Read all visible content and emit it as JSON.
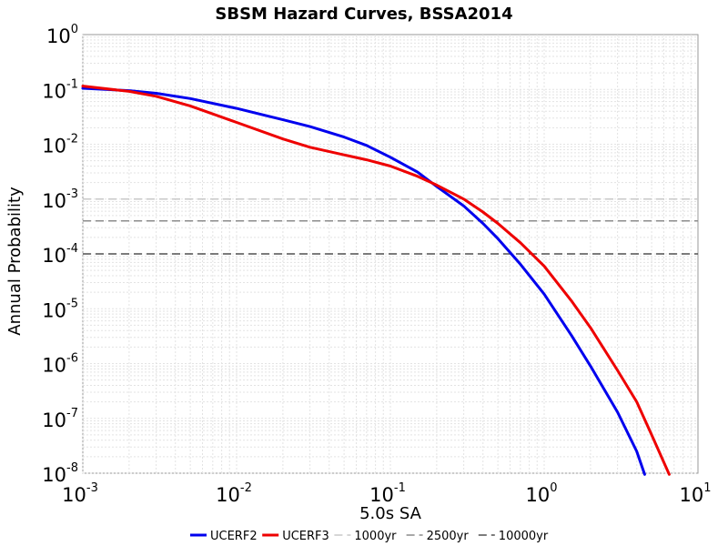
{
  "chart_data": {
    "type": "line",
    "title": "SBSM Hazard Curves, BSSA2014",
    "xlabel": "5.0s SA",
    "ylabel": "Annual Probability",
    "x_scale": "log",
    "y_scale": "log",
    "xlim": [
      0.001,
      10
    ],
    "ylim": [
      1e-08,
      1
    ],
    "grid": true,
    "legend_position": "bottom",
    "x_ticks": [
      {
        "base": "10",
        "exp": "-3",
        "value": 0.001
      },
      {
        "base": "10",
        "exp": "-2",
        "value": 0.01
      },
      {
        "base": "10",
        "exp": "-1",
        "value": 0.1
      },
      {
        "base": "10",
        "exp": "0",
        "value": 1
      },
      {
        "base": "10",
        "exp": "1",
        "value": 10
      }
    ],
    "y_ticks": [
      {
        "base": "10",
        "exp": "0",
        "value": 1
      },
      {
        "base": "10",
        "exp": "-1",
        "value": 0.1
      },
      {
        "base": "10",
        "exp": "-2",
        "value": 0.01
      },
      {
        "base": "10",
        "exp": "-3",
        "value": 0.001
      },
      {
        "base": "10",
        "exp": "-4",
        "value": 0.0001
      },
      {
        "base": "10",
        "exp": "-5",
        "value": 1e-05
      },
      {
        "base": "10",
        "exp": "-6",
        "value": 1e-06
      },
      {
        "base": "10",
        "exp": "-7",
        "value": 1e-07
      },
      {
        "base": "10",
        "exp": "-8",
        "value": 1e-08
      }
    ],
    "series": [
      {
        "name": "UCERF2",
        "color": "#0000ee",
        "points": [
          [
            0.001,
            0.105
          ],
          [
            0.002,
            0.095
          ],
          [
            0.003,
            0.085
          ],
          [
            0.005,
            0.068
          ],
          [
            0.01,
            0.045
          ],
          [
            0.02,
            0.028
          ],
          [
            0.03,
            0.021
          ],
          [
            0.05,
            0.0135
          ],
          [
            0.07,
            0.0095
          ],
          [
            0.1,
            0.0058
          ],
          [
            0.15,
            0.0031
          ],
          [
            0.2,
            0.0017
          ],
          [
            0.3,
            0.00075
          ],
          [
            0.4,
            0.00036
          ],
          [
            0.5,
            0.00019
          ],
          [
            0.7,
            6.5e-05
          ],
          [
            1.0,
            1.85e-05
          ],
          [
            1.5,
            3.3e-06
          ],
          [
            2.0,
            9e-07
          ],
          [
            3.0,
            1.3e-07
          ],
          [
            4.0,
            2.5e-08
          ],
          [
            4.5,
            9.5e-09
          ]
        ]
      },
      {
        "name": "UCERF3",
        "color": "#ee0000",
        "points": [
          [
            0.001,
            0.115
          ],
          [
            0.002,
            0.092
          ],
          [
            0.003,
            0.075
          ],
          [
            0.005,
            0.05
          ],
          [
            0.01,
            0.025
          ],
          [
            0.02,
            0.0125
          ],
          [
            0.03,
            0.0088
          ],
          [
            0.05,
            0.0064
          ],
          [
            0.07,
            0.0052
          ],
          [
            0.1,
            0.004
          ],
          [
            0.15,
            0.0026
          ],
          [
            0.2,
            0.0018
          ],
          [
            0.3,
            0.001
          ],
          [
            0.4,
            0.00058
          ],
          [
            0.5,
            0.00036
          ],
          [
            0.7,
            0.00016
          ],
          [
            1.0,
            6e-05
          ],
          [
            1.5,
            1.4e-05
          ],
          [
            2.0,
            4.5e-06
          ],
          [
            3.0,
            7.5e-07
          ],
          [
            4.0,
            2e-07
          ],
          [
            5.0,
            5e-08
          ],
          [
            6.5,
            9.5e-09
          ]
        ]
      }
    ],
    "reference_lines": [
      {
        "name": "1000yr",
        "y": 0.001,
        "color": "#c8c8c8"
      },
      {
        "name": "2500yr",
        "y": 0.0004,
        "color": "#8c8c8c"
      },
      {
        "name": "10000yr",
        "y": 0.0001,
        "color": "#505050"
      }
    ]
  }
}
